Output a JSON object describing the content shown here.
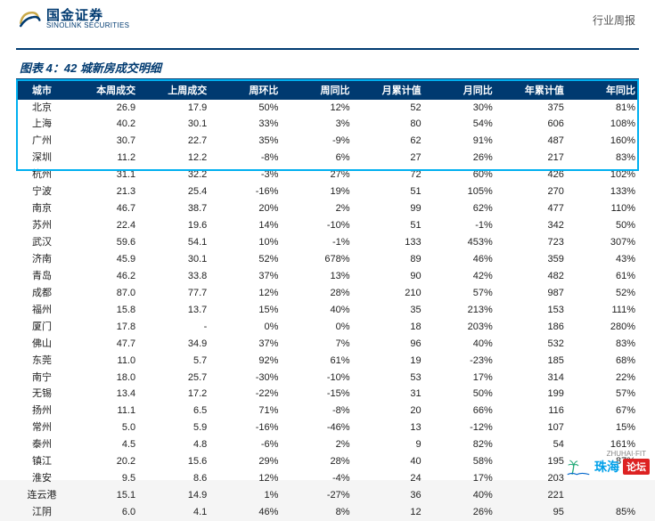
{
  "brand": {
    "cn": "国金证券",
    "en": "SINOLINK SECURITIES"
  },
  "report_type": "行业周报",
  "chart_title": "图表 4：42 城新房成交明细",
  "colors": {
    "header_bg": "#003a70",
    "header_text": "#ffffff",
    "highlight_border": "#00b0f0",
    "body_text": "#222222",
    "page_bg": "#ffffff"
  },
  "table": {
    "columns": [
      "城市",
      "本周成交",
      "上周成交",
      "周环比",
      "周同比",
      "月累计值",
      "月同比",
      "年累计值",
      "年同比"
    ],
    "highlight_rows": [
      0,
      1,
      2
    ],
    "rows": [
      [
        "北京",
        "26.9",
        "17.9",
        "50%",
        "12%",
        "52",
        "30%",
        "375",
        "81%"
      ],
      [
        "上海",
        "40.2",
        "30.1",
        "33%",
        "3%",
        "80",
        "54%",
        "606",
        "108%"
      ],
      [
        "广州",
        "30.7",
        "22.7",
        "35%",
        "-9%",
        "62",
        "91%",
        "487",
        "160%"
      ],
      [
        "深圳",
        "11.2",
        "12.2",
        "-8%",
        "6%",
        "27",
        "26%",
        "217",
        "83%"
      ],
      [
        "杭州",
        "31.1",
        "32.2",
        "-3%",
        "27%",
        "72",
        "60%",
        "426",
        "102%"
      ],
      [
        "宁波",
        "21.3",
        "25.4",
        "-16%",
        "19%",
        "51",
        "105%",
        "270",
        "133%"
      ],
      [
        "南京",
        "46.7",
        "38.7",
        "20%",
        "2%",
        "99",
        "62%",
        "477",
        "110%"
      ],
      [
        "苏州",
        "22.4",
        "19.6",
        "14%",
        "-10%",
        "51",
        "-1%",
        "342",
        "50%"
      ],
      [
        "武汉",
        "59.6",
        "54.1",
        "10%",
        "-1%",
        "133",
        "453%",
        "723",
        "307%"
      ],
      [
        "济南",
        "45.9",
        "30.1",
        "52%",
        "678%",
        "89",
        "46%",
        "359",
        "43%"
      ],
      [
        "青岛",
        "46.2",
        "33.8",
        "37%",
        "13%",
        "90",
        "42%",
        "482",
        "61%"
      ],
      [
        "成都",
        "87.0",
        "77.7",
        "12%",
        "28%",
        "210",
        "57%",
        "987",
        "52%"
      ],
      [
        "福州",
        "15.8",
        "13.7",
        "15%",
        "40%",
        "35",
        "213%",
        "153",
        "111%"
      ],
      [
        "厦门",
        "17.8",
        "-",
        "0%",
        "0%",
        "18",
        "203%",
        "186",
        "280%"
      ],
      [
        "佛山",
        "47.7",
        "34.9",
        "37%",
        "7%",
        "96",
        "40%",
        "532",
        "83%"
      ],
      [
        "东莞",
        "11.0",
        "5.7",
        "92%",
        "61%",
        "19",
        "-23%",
        "185",
        "68%"
      ],
      [
        "南宁",
        "18.0",
        "25.7",
        "-30%",
        "-10%",
        "53",
        "17%",
        "314",
        "22%"
      ],
      [
        "无锡",
        "13.4",
        "17.2",
        "-22%",
        "-15%",
        "31",
        "50%",
        "199",
        "57%"
      ],
      [
        "扬州",
        "11.1",
        "6.5",
        "71%",
        "-8%",
        "20",
        "66%",
        "116",
        "67%"
      ],
      [
        "常州",
        "5.0",
        "5.9",
        "-16%",
        "-46%",
        "13",
        "-12%",
        "107",
        "15%"
      ],
      [
        "泰州",
        "4.5",
        "4.8",
        "-6%",
        "2%",
        "9",
        "82%",
        "54",
        "161%"
      ],
      [
        "镇江",
        "20.2",
        "15.6",
        "29%",
        "28%",
        "40",
        "58%",
        "195",
        "87%"
      ],
      [
        "淮安",
        "9.5",
        "8.6",
        "12%",
        "-4%",
        "24",
        "17%",
        "203",
        ""
      ],
      [
        "连云港",
        "15.1",
        "14.9",
        "1%",
        "-27%",
        "36",
        "40%",
        "221",
        ""
      ],
      [
        "江阴",
        "6.0",
        "4.1",
        "46%",
        "8%",
        "12",
        "26%",
        "95",
        "85%"
      ]
    ]
  },
  "watermark": {
    "text": "珠海",
    "tag": "论坛",
    "en": "ZHUHAI·FIT"
  }
}
